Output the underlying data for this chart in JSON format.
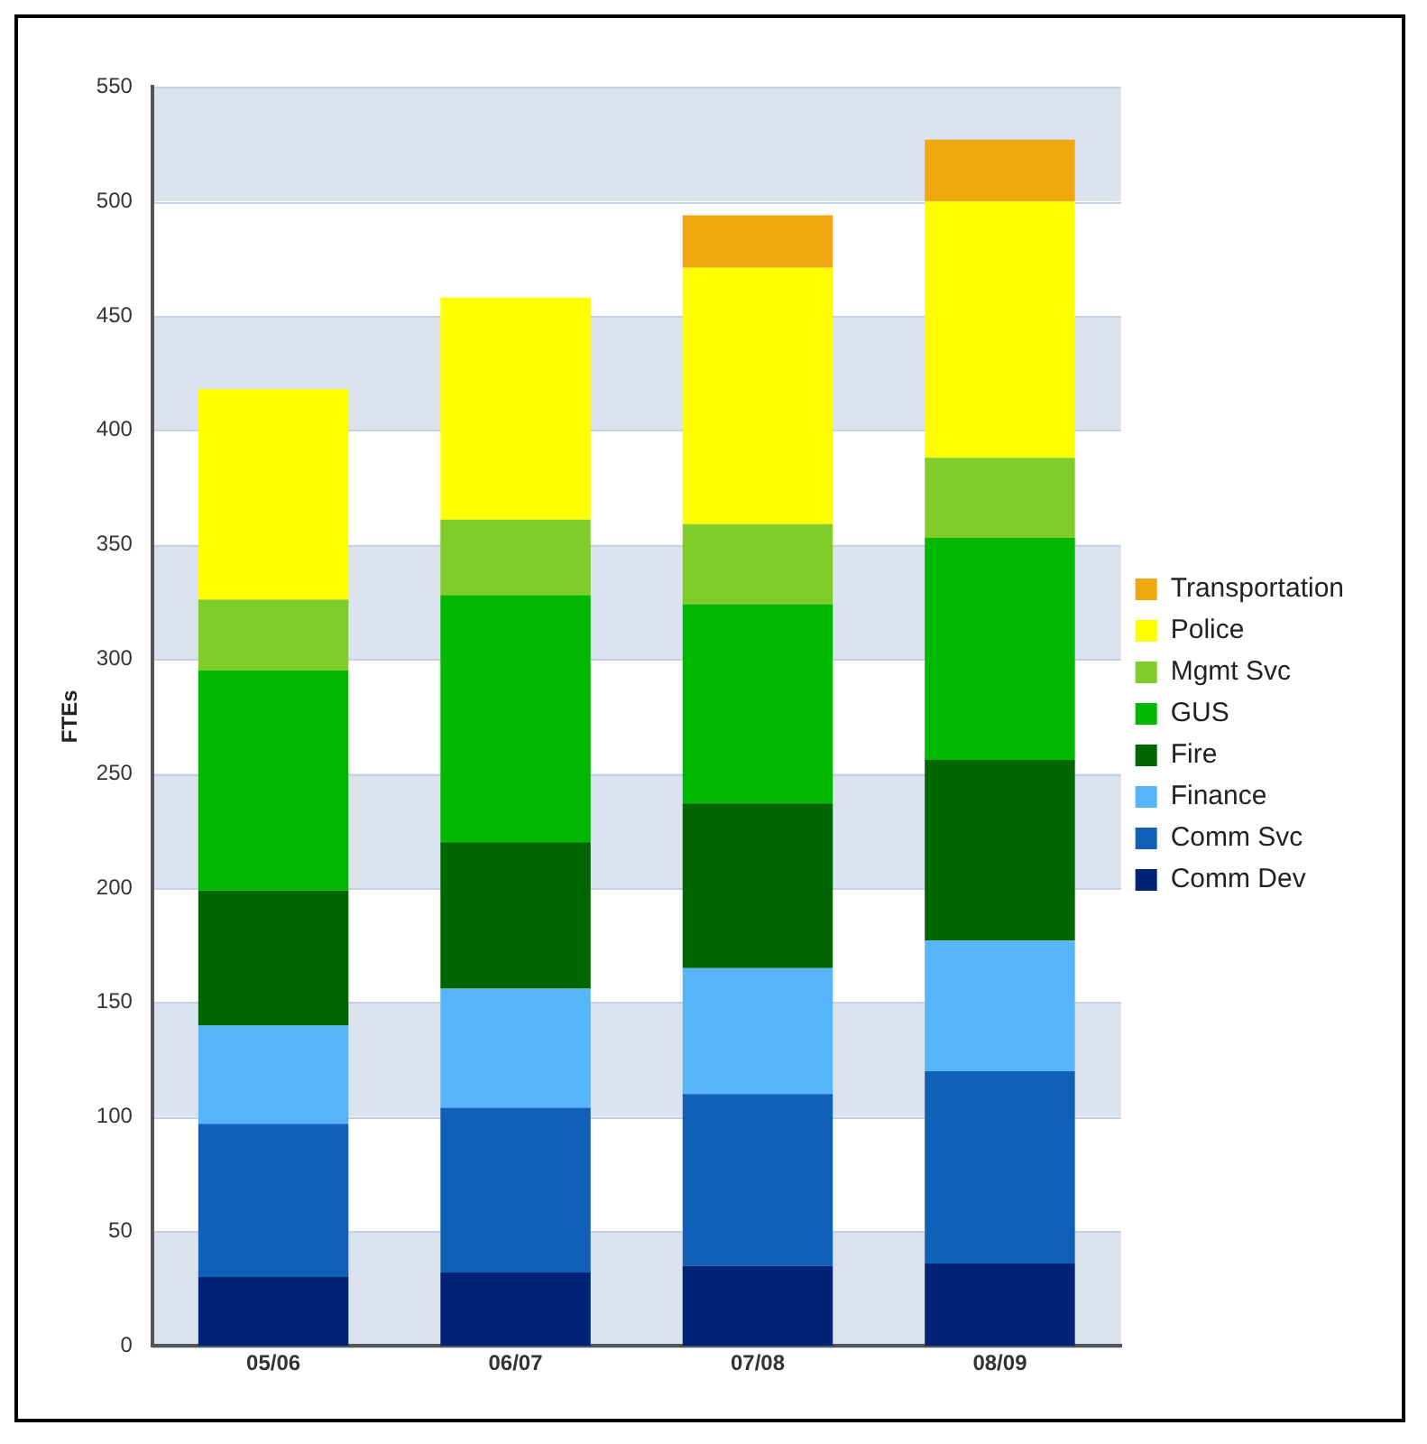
{
  "chart_data": {
    "type": "bar",
    "stacked": true,
    "ylabel": "FTEs",
    "categories": [
      "05/06",
      "06/07",
      "07/08",
      "08/09"
    ],
    "series": [
      {
        "name": "Comm Dev",
        "color": "#002277",
        "values": [
          30,
          32,
          35,
          36
        ]
      },
      {
        "name": "Comm Svc",
        "color": "#1060b8",
        "values": [
          67,
          72,
          75,
          84
        ]
      },
      {
        "name": "Finance",
        "color": "#55b5f8",
        "values": [
          43,
          52,
          55,
          57
        ]
      },
      {
        "name": "Fire",
        "color": "#006600",
        "values": [
          59,
          64,
          72,
          79
        ]
      },
      {
        "name": "GUS",
        "color": "#00b800",
        "values": [
          96,
          108,
          87,
          97
        ]
      },
      {
        "name": "Mgmt Svc",
        "color": "#80cc28",
        "values": [
          31,
          33,
          35,
          35
        ]
      },
      {
        "name": "Police",
        "color": "#ffff00",
        "values": [
          92,
          97,
          112,
          112
        ]
      },
      {
        "name": "Transportation",
        "color": "#f0a810",
        "values": [
          null,
          null,
          23,
          27
        ]
      }
    ],
    "ylim": [
      0,
      550
    ],
    "yticks": [
      0,
      50,
      100,
      150,
      200,
      250,
      300,
      350,
      400,
      450,
      500,
      550
    ],
    "grid": "y",
    "legend": "right"
  }
}
